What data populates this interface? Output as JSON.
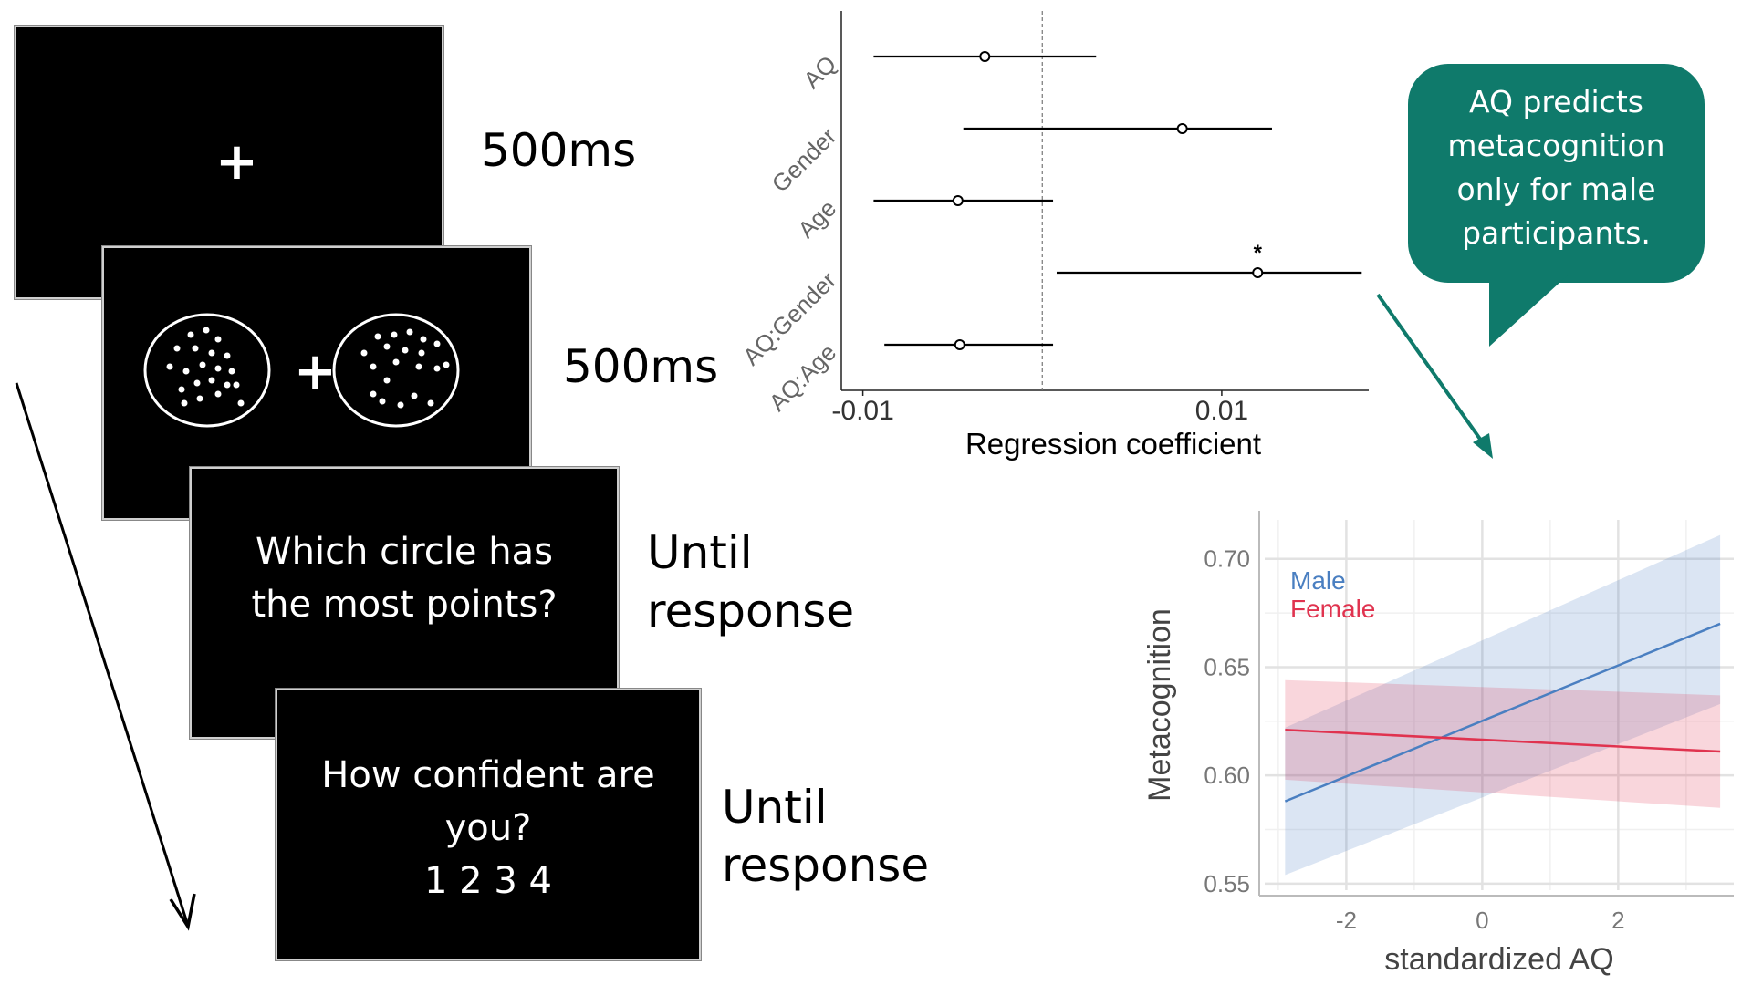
{
  "trial": {
    "fixation": {
      "symbol": "+",
      "duration": "500ms"
    },
    "stimulus": {
      "symbol": "+",
      "duration": "500ms"
    },
    "question": {
      "line1": "Which circle has",
      "line2": "the most points?",
      "duration_line1": "Until",
      "duration_line2": "response"
    },
    "confidence": {
      "line1": "How confident are",
      "line2": "you?",
      "scale": "1 2 3 4",
      "duration_line1": "Until",
      "duration_line2": "response"
    }
  },
  "callout": {
    "lines": [
      "AQ predicts",
      "metacognition",
      "only for male",
      "participants."
    ],
    "color": "#0f7a6b"
  },
  "chart_data": [
    {
      "type": "scatter",
      "subtype": "coefficient-plot",
      "xlabel": "Regression coefficient",
      "ticks": [
        "-0.01",
        "0.01"
      ],
      "xlim": [
        -0.0112,
        0.0187
      ],
      "reference_line": 0,
      "terms": [
        {
          "label": "AQ",
          "estimate": -0.0032,
          "ci": [
            -0.0094,
            0.003
          ],
          "significance": ""
        },
        {
          "label": "Gender",
          "estimate": 0.0078,
          "ci": [
            -0.0044,
            0.0128
          ],
          "significance": ""
        },
        {
          "label": "Age",
          "estimate": -0.0047,
          "ci": [
            -0.0094,
            0.0006
          ],
          "significance": ""
        },
        {
          "label": "AQ:Gender",
          "estimate": 0.012,
          "ci": [
            0.0008,
            0.0178
          ],
          "significance": "*"
        },
        {
          "label": "AQ:Age",
          "estimate": -0.0046,
          "ci": [
            -0.0088,
            0.0006
          ],
          "significance": ""
        }
      ]
    },
    {
      "type": "line",
      "xlabel": "standardized AQ",
      "ylabel": "Metacognition",
      "xlim": [
        -3.2,
        3.7
      ],
      "ylim": [
        0.547,
        0.718
      ],
      "xticks": [
        -2,
        0,
        2
      ],
      "yticks": [
        "0.55",
        "0.60",
        "0.65",
        "0.70"
      ],
      "grid": true,
      "legend": "top-left",
      "series": [
        {
          "name": "Male",
          "color": "#4a7fc1",
          "x": [
            -2.9,
            3.5
          ],
          "y": [
            0.588,
            0.67
          ],
          "band_lower": [
            0.554,
            0.633
          ],
          "band_upper": [
            0.622,
            0.711
          ]
        },
        {
          "name": "Female",
          "color": "#e0334f",
          "x": [
            -2.9,
            3.5
          ],
          "y": [
            0.621,
            0.611
          ],
          "band_lower": [
            0.598,
            0.585
          ],
          "band_upper": [
            0.644,
            0.637
          ]
        }
      ]
    }
  ]
}
